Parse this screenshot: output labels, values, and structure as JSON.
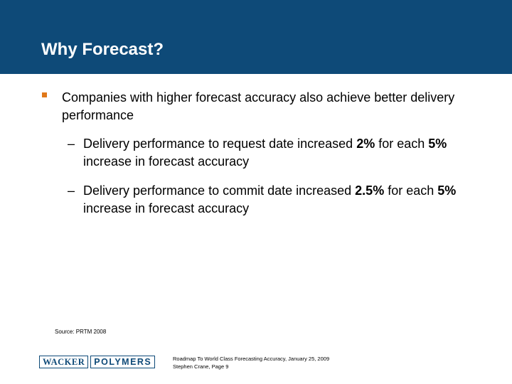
{
  "slide": {
    "title": "Why Forecast?",
    "bullet": "Companies with higher forecast accuracy also achieve better delivery performance",
    "sub_bullets": [
      {
        "dash": "–",
        "pre": "Delivery performance to request date increased ",
        "b1": "2%",
        "mid": " for each ",
        "b2": "5%",
        "post": " increase in forecast accuracy"
      },
      {
        "dash": "–",
        "pre": "Delivery performance to commit date increased ",
        "b1": "2.5%",
        "mid": " for each ",
        "b2": "5%",
        "post": " increase in forecast accuracy"
      }
    ],
    "source": "Source: PRTM 2008"
  },
  "footer": {
    "logo_left": "WACKER",
    "logo_right": "POLYMERS",
    "line1": "Roadmap To World Class Forecasting Accuracy, January 25, 2009",
    "line2": "Stephen Crane, Page 9"
  },
  "colors": {
    "header_bg": "#0e4a78",
    "bullet_square": "#e0781a"
  }
}
